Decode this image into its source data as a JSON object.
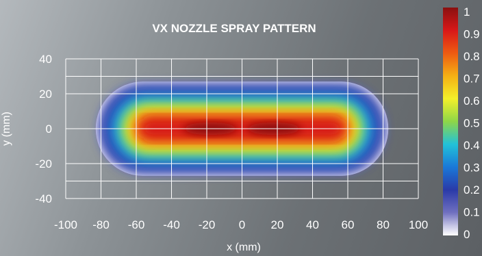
{
  "chart_data": {
    "type": "heatmap",
    "title": "VX NOZZLE SPRAY PATTERN",
    "xlabel": "x (mm)",
    "ylabel": "y (mm)",
    "xlim": [
      -100,
      100
    ],
    "ylim": [
      -40,
      40
    ],
    "x_ticks": [
      "-100",
      "-80",
      "-60",
      "-40",
      "-20",
      "0",
      "20",
      "40",
      "60",
      "80",
      "100"
    ],
    "y_ticks": [
      "40",
      "20",
      "0",
      "-20",
      "-40"
    ],
    "grid": true,
    "colorbar": {
      "placement": "right",
      "range": [
        0,
        1
      ],
      "ticks": [
        "1",
        "0.9",
        "0.8",
        "0.7",
        "0.6",
        "0.5",
        "0.4",
        "0.3",
        "0.2",
        "0.1",
        "0"
      ]
    },
    "pattern": {
      "x_extent": [
        -83,
        83
      ],
      "y_extent": [
        -27,
        27
      ],
      "peaks": [
        {
          "x": -18,
          "y": 0,
          "value": 1.0
        },
        {
          "x": 18,
          "y": 0,
          "value": 1.0
        }
      ]
    },
    "colors": {
      "background": "#7a7f83",
      "text": "#ffffff",
      "grid": "#ffffff"
    }
  }
}
